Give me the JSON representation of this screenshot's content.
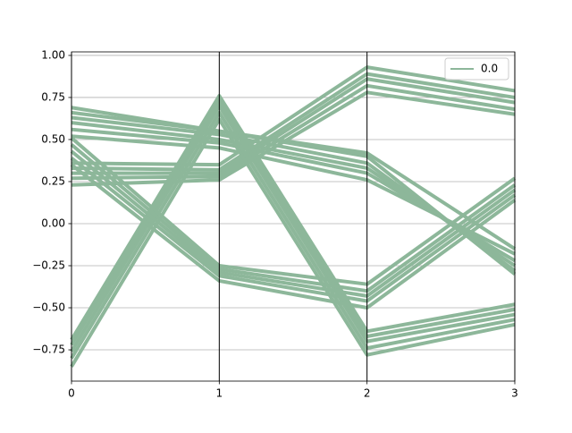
{
  "chart_data": {
    "type": "parallel",
    "x": [
      0,
      1,
      2,
      3
    ],
    "xlim": [
      0,
      3
    ],
    "xticks": [
      0,
      1,
      2,
      3
    ],
    "ylim": [
      -0.936,
      1.021
    ],
    "yticks": [
      {
        "value": -0.75,
        "label": "−0.75"
      },
      {
        "value": -0.5,
        "label": "−0.50"
      },
      {
        "value": -0.25,
        "label": "−0.25"
      },
      {
        "value": 0,
        "label": "0.00"
      },
      {
        "value": 0.25,
        "label": "0.25"
      },
      {
        "value": 0.5,
        "label": "0.50"
      },
      {
        "value": 0.75,
        "label": "0.75"
      },
      {
        "value": 1,
        "label": "1.00"
      }
    ],
    "grid": true,
    "legend": {
      "label": "0.0",
      "loc": "upper right"
    },
    "color": "#8db79a",
    "lines": [
      [
        0.52,
        0.45,
        0.26,
        -0.18
      ],
      [
        0.56,
        0.48,
        0.3,
        -0.22
      ],
      [
        0.6,
        0.5,
        0.33,
        -0.25
      ],
      [
        0.63,
        0.53,
        0.36,
        -0.28
      ],
      [
        0.66,
        0.55,
        0.4,
        -0.3
      ],
      [
        0.69,
        0.55,
        0.42,
        -0.15
      ],
      [
        0.23,
        0.26,
        0.78,
        0.65
      ],
      [
        0.27,
        0.28,
        0.82,
        0.68
      ],
      [
        0.3,
        0.3,
        0.86,
        0.72
      ],
      [
        0.33,
        0.32,
        0.89,
        0.75
      ],
      [
        0.36,
        0.35,
        0.93,
        0.79
      ],
      [
        -0.85,
        0.62,
        -0.78,
        -0.6
      ],
      [
        -0.8,
        0.66,
        -0.74,
        -0.57
      ],
      [
        -0.76,
        0.7,
        -0.7,
        -0.54
      ],
      [
        -0.72,
        0.73,
        -0.67,
        -0.51
      ],
      [
        -0.69,
        0.76,
        -0.64,
        -0.48
      ],
      [
        0.35,
        -0.34,
        -0.5,
        0.14
      ],
      [
        0.39,
        -0.31,
        -0.46,
        0.17
      ],
      [
        0.43,
        -0.29,
        -0.43,
        0.2
      ],
      [
        0.47,
        -0.27,
        -0.4,
        0.23
      ],
      [
        0.51,
        -0.25,
        -0.36,
        0.27
      ]
    ]
  }
}
